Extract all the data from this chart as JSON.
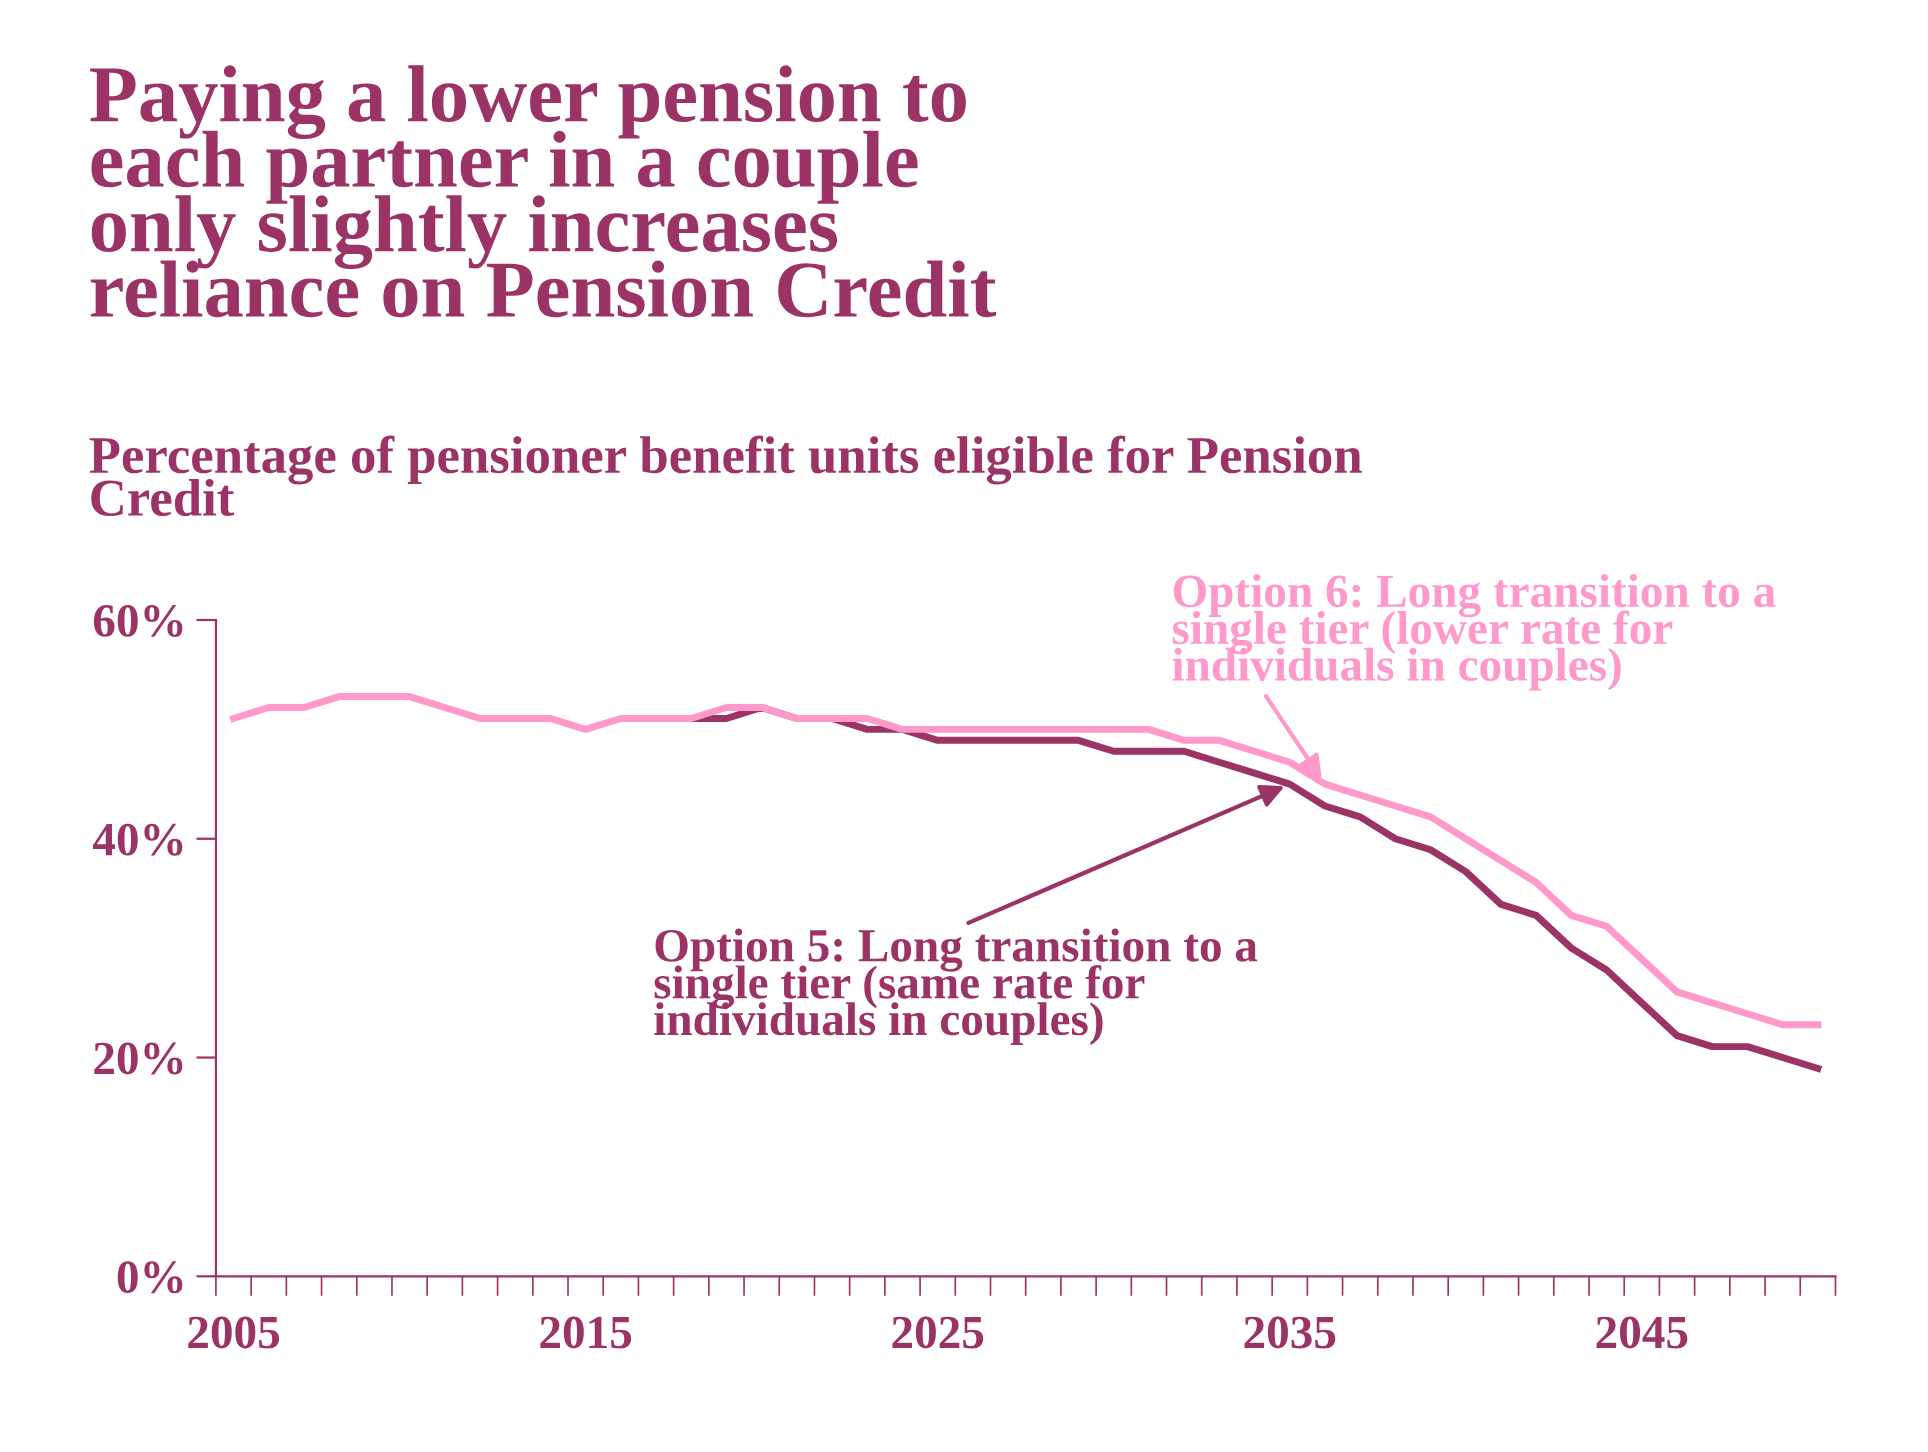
{
  "chart_data": {
    "type": "line",
    "title": "Paying a lower pension to each partner in a couple only slightly increases reliance on Pension Credit",
    "subtitle": "Percentage of pensioner benefit units eligible for Pension Credit",
    "categories": [
      "2005",
      null,
      null,
      null,
      null,
      null,
      null,
      null,
      null,
      null,
      "2015",
      null,
      null,
      null,
      null,
      null,
      null,
      null,
      null,
      null,
      "2025",
      null,
      null,
      null,
      null,
      null,
      null,
      null,
      null,
      null,
      "2035",
      null,
      null,
      null,
      null,
      null,
      null,
      null,
      null,
      null,
      "2045",
      null,
      null,
      null,
      null,
      null
    ],
    "series": [
      {
        "name": "Option 5: Long transition to a single tier (same rate for individuals in couples)",
        "color": "#9b3366",
        "values": [
          null,
          null,
          null,
          null,
          null,
          null,
          null,
          null,
          null,
          null,
          null,
          null,
          null,
          51,
          51,
          52,
          51,
          51,
          50,
          50,
          49,
          49,
          49,
          49,
          49,
          48,
          48,
          48,
          47,
          46,
          45,
          43,
          42,
          40,
          39,
          37,
          34,
          33,
          30,
          28,
          25,
          22,
          21,
          21,
          20,
          19
        ]
      },
      {
        "name": "Option 6: Long transition to a single tier (lower rate for individuals in couples)",
        "color": "#ff99cc",
        "values": [
          51,
          52,
          52,
          53,
          53,
          53,
          52,
          51,
          51,
          51,
          50,
          51,
          51,
          51,
          52,
          52,
          51,
          51,
          51,
          50,
          50,
          50,
          50,
          50,
          50,
          50,
          50,
          49,
          49,
          48,
          47,
          45,
          44,
          43,
          42,
          40,
          38,
          36,
          33,
          32,
          29,
          26,
          25,
          24,
          23,
          23
        ]
      }
    ],
    "ylim": [
      0,
      60
    ],
    "yticks": [
      {
        "value": 0,
        "label": "0%"
      },
      {
        "value": 20,
        "label": "20%"
      },
      {
        "value": 40,
        "label": "40%"
      },
      {
        "value": 60,
        "label": "60%"
      }
    ],
    "grid": false,
    "legend": false,
    "marker": "none",
    "line_style": "solid"
  }
}
